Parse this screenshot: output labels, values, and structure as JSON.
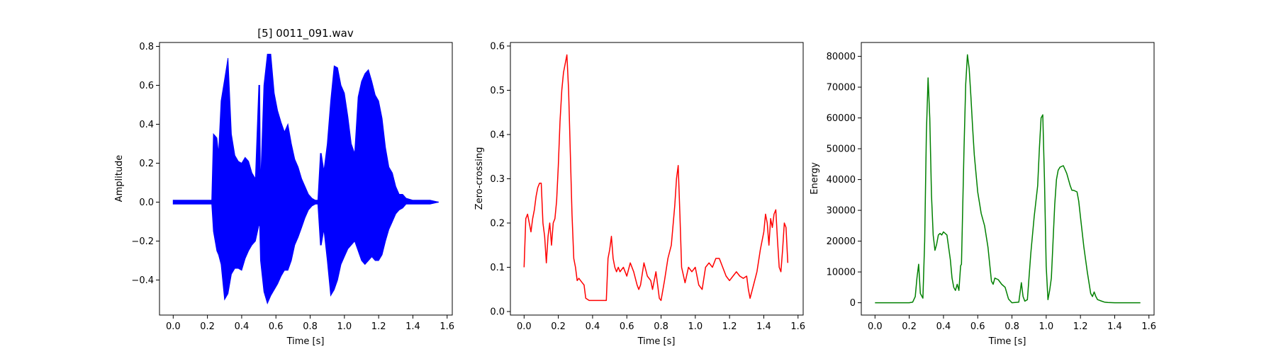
{
  "chart_data": [
    {
      "type": "line",
      "title": "[5] 0011_091.wav",
      "xlabel": "Time [s]",
      "ylabel": "Amplitude",
      "color": "#0000ff",
      "xlim": [
        -0.08,
        1.63
      ],
      "ylim": [
        -0.58,
        0.82
      ],
      "xticks": [
        0.0,
        0.2,
        0.4,
        0.6,
        0.8,
        1.0,
        1.2,
        1.4,
        1.6
      ],
      "xtick_labels": [
        "0.0",
        "0.2",
        "0.4",
        "0.6",
        "0.8",
        "1.0",
        "1.2",
        "1.4",
        "1.6"
      ],
      "yticks": [
        -0.4,
        -0.2,
        0.0,
        0.2,
        0.4,
        0.6,
        0.8
      ],
      "ytick_labels": [
        "−0.4",
        "−0.2",
        "0.0",
        "0.2",
        "0.4",
        "0.6",
        "0.8"
      ],
      "grid": false,
      "envelope": {
        "x": [
          0.0,
          0.225,
          0.235,
          0.245,
          0.255,
          0.265,
          0.28,
          0.3,
          0.32,
          0.34,
          0.36,
          0.38,
          0.4,
          0.42,
          0.44,
          0.46,
          0.48,
          0.5,
          0.505,
          0.51,
          0.53,
          0.55,
          0.57,
          0.59,
          0.61,
          0.63,
          0.65,
          0.67,
          0.69,
          0.71,
          0.73,
          0.75,
          0.77,
          0.79,
          0.81,
          0.83,
          0.845,
          0.86,
          0.865,
          0.88,
          0.9,
          0.92,
          0.94,
          0.96,
          0.98,
          1.0,
          1.02,
          1.04,
          1.06,
          1.08,
          1.1,
          1.12,
          1.14,
          1.16,
          1.18,
          1.2,
          1.22,
          1.24,
          1.26,
          1.28,
          1.3,
          1.32,
          1.34,
          1.36,
          1.4,
          1.45,
          1.5,
          1.55
        ],
        "upper": [
          0.01,
          0.01,
          0.35,
          0.34,
          0.33,
          0.25,
          0.52,
          0.63,
          0.74,
          0.35,
          0.24,
          0.21,
          0.2,
          0.23,
          0.21,
          0.15,
          0.12,
          0.6,
          0.6,
          0.08,
          0.6,
          0.76,
          0.76,
          0.56,
          0.47,
          0.41,
          0.36,
          0.4,
          0.3,
          0.22,
          0.18,
          0.12,
          0.08,
          0.04,
          0.02,
          0.01,
          0.01,
          0.25,
          0.25,
          0.16,
          0.3,
          0.52,
          0.7,
          0.69,
          0.6,
          0.56,
          0.44,
          0.3,
          0.25,
          0.54,
          0.62,
          0.66,
          0.68,
          0.62,
          0.55,
          0.52,
          0.43,
          0.28,
          0.18,
          0.15,
          0.08,
          0.04,
          0.04,
          0.02,
          0.01,
          0.01,
          0.01,
          0.0
        ],
        "lower": [
          -0.01,
          -0.01,
          -0.15,
          -0.2,
          -0.25,
          -0.27,
          -0.32,
          -0.5,
          -0.47,
          -0.37,
          -0.34,
          -0.34,
          -0.35,
          -0.29,
          -0.25,
          -0.22,
          -0.2,
          -0.12,
          -0.12,
          -0.3,
          -0.46,
          -0.52,
          -0.48,
          -0.45,
          -0.42,
          -0.38,
          -0.35,
          -0.35,
          -0.3,
          -0.22,
          -0.18,
          -0.13,
          -0.08,
          -0.04,
          -0.02,
          -0.01,
          -0.01,
          -0.22,
          -0.22,
          -0.14,
          -0.3,
          -0.48,
          -0.45,
          -0.4,
          -0.32,
          -0.28,
          -0.24,
          -0.22,
          -0.2,
          -0.25,
          -0.3,
          -0.32,
          -0.3,
          -0.28,
          -0.3,
          -0.3,
          -0.27,
          -0.2,
          -0.14,
          -0.1,
          -0.06,
          -0.04,
          -0.03,
          -0.01,
          -0.01,
          -0.01,
          -0.01,
          0.0
        ]
      }
    },
    {
      "type": "line",
      "title": "",
      "xlabel": "Time [s]",
      "ylabel": "Zero-crossing",
      "color": "#ff0000",
      "xlim": [
        -0.08,
        1.63
      ],
      "ylim": [
        -0.008,
        0.608
      ],
      "xticks": [
        0.0,
        0.2,
        0.4,
        0.6,
        0.8,
        1.0,
        1.2,
        1.4,
        1.6
      ],
      "xtick_labels": [
        "0.0",
        "0.2",
        "0.4",
        "0.6",
        "0.8",
        "1.0",
        "1.2",
        "1.4",
        "1.6"
      ],
      "yticks": [
        0.0,
        0.1,
        0.2,
        0.3,
        0.4,
        0.5,
        0.6
      ],
      "ytick_labels": [
        "0.0",
        "0.1",
        "0.2",
        "0.3",
        "0.4",
        "0.5",
        "0.6"
      ],
      "grid": false,
      "x": [
        0.0,
        0.01,
        0.02,
        0.03,
        0.04,
        0.05,
        0.06,
        0.07,
        0.08,
        0.09,
        0.1,
        0.11,
        0.12,
        0.13,
        0.14,
        0.15,
        0.16,
        0.17,
        0.18,
        0.19,
        0.2,
        0.21,
        0.22,
        0.23,
        0.24,
        0.25,
        0.26,
        0.27,
        0.28,
        0.29,
        0.3,
        0.31,
        0.32,
        0.33,
        0.34,
        0.35,
        0.36,
        0.38,
        0.4,
        0.42,
        0.44,
        0.46,
        0.48,
        0.49,
        0.5,
        0.51,
        0.52,
        0.53,
        0.54,
        0.55,
        0.56,
        0.58,
        0.6,
        0.62,
        0.64,
        0.66,
        0.67,
        0.68,
        0.7,
        0.72,
        0.74,
        0.75,
        0.77,
        0.79,
        0.8,
        0.82,
        0.84,
        0.86,
        0.88,
        0.89,
        0.9,
        0.91,
        0.92,
        0.94,
        0.96,
        0.98,
        1.0,
        1.02,
        1.04,
        1.06,
        1.08,
        1.1,
        1.12,
        1.14,
        1.16,
        1.18,
        1.2,
        1.22,
        1.24,
        1.26,
        1.28,
        1.3,
        1.31,
        1.32,
        1.34,
        1.36,
        1.38,
        1.4,
        1.41,
        1.42,
        1.43,
        1.44,
        1.45,
        1.46,
        1.47,
        1.48,
        1.49,
        1.5,
        1.51,
        1.52,
        1.53,
        1.54
      ],
      "y": [
        0.1,
        0.21,
        0.22,
        0.2,
        0.18,
        0.21,
        0.23,
        0.26,
        0.28,
        0.29,
        0.29,
        0.2,
        0.17,
        0.11,
        0.17,
        0.2,
        0.15,
        0.2,
        0.21,
        0.25,
        0.33,
        0.43,
        0.5,
        0.54,
        0.56,
        0.58,
        0.5,
        0.36,
        0.22,
        0.12,
        0.1,
        0.07,
        0.075,
        0.07,
        0.065,
        0.06,
        0.03,
        0.025,
        0.025,
        0.025,
        0.025,
        0.025,
        0.025,
        0.12,
        0.14,
        0.17,
        0.12,
        0.1,
        0.09,
        0.1,
        0.09,
        0.1,
        0.08,
        0.11,
        0.09,
        0.06,
        0.05,
        0.06,
        0.11,
        0.08,
        0.07,
        0.05,
        0.09,
        0.03,
        0.025,
        0.07,
        0.12,
        0.15,
        0.24,
        0.3,
        0.33,
        0.22,
        0.1,
        0.065,
        0.1,
        0.09,
        0.1,
        0.06,
        0.05,
        0.1,
        0.11,
        0.1,
        0.12,
        0.12,
        0.1,
        0.08,
        0.07,
        0.08,
        0.09,
        0.08,
        0.075,
        0.08,
        0.05,
        0.03,
        0.06,
        0.09,
        0.14,
        0.18,
        0.22,
        0.2,
        0.15,
        0.21,
        0.19,
        0.22,
        0.23,
        0.16,
        0.1,
        0.09,
        0.14,
        0.2,
        0.19,
        0.11
      ]
    },
    {
      "type": "line",
      "title": "",
      "xlabel": "Time [s]",
      "ylabel": "Energy",
      "color": "#008000",
      "xlim": [
        -0.08,
        1.63
      ],
      "ylim": [
        -4000,
        84500
      ],
      "xticks": [
        0.0,
        0.2,
        0.4,
        0.6,
        0.8,
        1.0,
        1.2,
        1.4,
        1.6
      ],
      "xtick_labels": [
        "0.0",
        "0.2",
        "0.4",
        "0.6",
        "0.8",
        "1.0",
        "1.2",
        "1.4",
        "1.6"
      ],
      "yticks": [
        0,
        10000,
        20000,
        30000,
        40000,
        50000,
        60000,
        70000,
        80000
      ],
      "ytick_labels": [
        "0",
        "10000",
        "20000",
        "30000",
        "40000",
        "50000",
        "60000",
        "70000",
        "80000"
      ],
      "grid": false,
      "x": [
        0.0,
        0.2,
        0.22,
        0.235,
        0.245,
        0.255,
        0.265,
        0.28,
        0.29,
        0.3,
        0.31,
        0.32,
        0.33,
        0.34,
        0.35,
        0.36,
        0.37,
        0.38,
        0.39,
        0.4,
        0.42,
        0.44,
        0.45,
        0.46,
        0.47,
        0.48,
        0.49,
        0.5,
        0.505,
        0.51,
        0.52,
        0.53,
        0.54,
        0.55,
        0.56,
        0.57,
        0.58,
        0.6,
        0.62,
        0.64,
        0.66,
        0.68,
        0.69,
        0.7,
        0.72,
        0.74,
        0.76,
        0.78,
        0.8,
        0.84,
        0.855,
        0.865,
        0.875,
        0.89,
        0.91,
        0.93,
        0.95,
        0.96,
        0.97,
        0.98,
        0.99,
        1.0,
        1.01,
        1.02,
        1.03,
        1.04,
        1.05,
        1.06,
        1.07,
        1.08,
        1.1,
        1.12,
        1.14,
        1.15,
        1.16,
        1.18,
        1.19,
        1.2,
        1.22,
        1.24,
        1.26,
        1.27,
        1.28,
        1.29,
        1.3,
        1.31,
        1.32,
        1.34,
        1.36,
        1.4,
        1.55
      ],
      "y": [
        0,
        0,
        200,
        2000,
        8000,
        12500,
        3000,
        1500,
        20000,
        55000,
        73000,
        60000,
        35000,
        22000,
        17000,
        19000,
        22000,
        22500,
        22000,
        23000,
        22000,
        14000,
        8000,
        5000,
        4000,
        6000,
        4000,
        12000,
        12500,
        25000,
        50000,
        71000,
        80500,
        76000,
        67000,
        57000,
        48000,
        36000,
        29000,
        25000,
        18000,
        7000,
        6000,
        8000,
        7500,
        6000,
        5000,
        1200,
        0,
        200,
        6500,
        2000,
        500,
        1000,
        16000,
        28000,
        38000,
        50000,
        60000,
        61000,
        40000,
        12000,
        1000,
        4000,
        8000,
        20000,
        32000,
        40000,
        43000,
        44000,
        44500,
        42000,
        38000,
        36500,
        36500,
        36000,
        33000,
        28000,
        18000,
        10000,
        3000,
        2000,
        3500,
        2000,
        1000,
        800,
        600,
        200,
        100,
        0,
        0
      ]
    }
  ]
}
